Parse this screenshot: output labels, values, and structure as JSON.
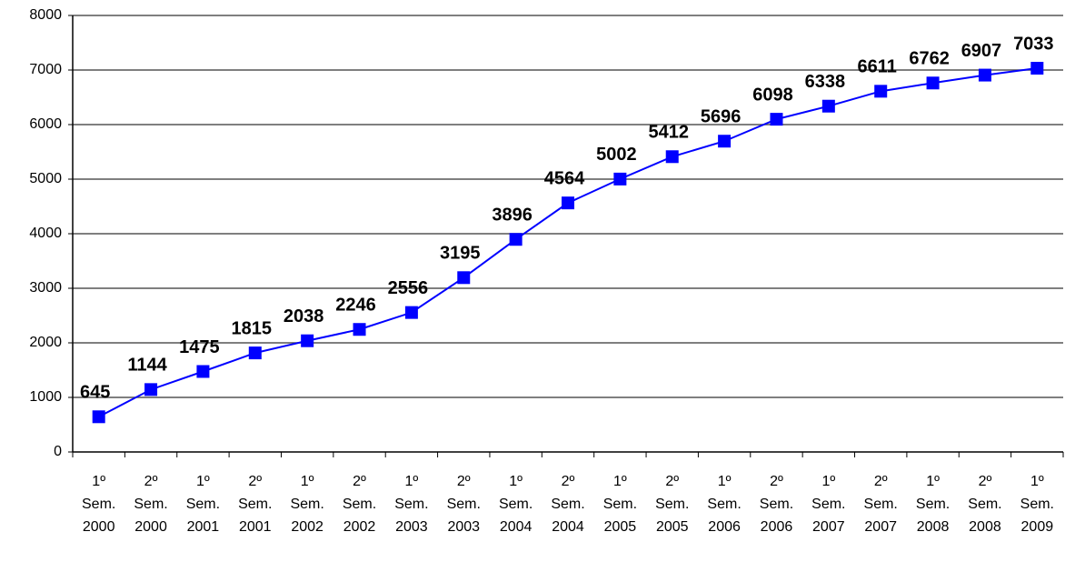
{
  "chart_data": {
    "type": "line",
    "categories": [
      "1º Sem. 2000",
      "2º Sem. 2000",
      "1º Sem. 2001",
      "2º Sem. 2001",
      "1º Sem. 2002",
      "2º Sem. 2002",
      "1º Sem. 2003",
      "2º Sem. 2003",
      "1º Sem. 2004",
      "2º Sem. 2004",
      "1º Sem. 2005",
      "2º Sem. 2005",
      "1º Sem. 2006",
      "2º Sem. 2006",
      "1º Sem. 2007",
      "2º Sem. 2007",
      "1º Sem. 2008",
      "2º Sem. 2008",
      "1º Sem. 2009"
    ],
    "values": [
      645,
      1144,
      1475,
      1815,
      2038,
      2246,
      2556,
      3195,
      3896,
      4564,
      5002,
      5412,
      5696,
      6098,
      6338,
      6611,
      6762,
      6907,
      7033
    ],
    "color": "#0000ff",
    "ylim": [
      0,
      8000
    ],
    "yticks": [
      0,
      1000,
      2000,
      3000,
      4000,
      5000,
      6000,
      7000,
      8000
    ],
    "grid": true
  }
}
